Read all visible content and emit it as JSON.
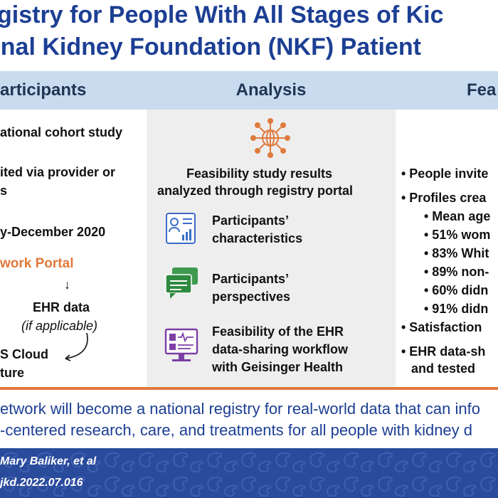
{
  "title": {
    "line1": "gistry for People With All Stages of Kic",
    "line2": "onal Kidney Foundation (NKF) Patient"
  },
  "columns": {
    "participants": {
      "header": "articipants"
    },
    "analysis": {
      "header": "Analysis"
    },
    "feasibility": {
      "header": "Fea"
    }
  },
  "participants": {
    "line1": "ational cohort study",
    "line2": "ited via provider or",
    "line3": "s",
    "line4": "y-December 2020",
    "portal": "work Portal",
    "arrow": "↓",
    "ehr": "EHR data",
    "ehr_note": "(if applicable)",
    "cloud1": "S Cloud",
    "cloud2": "ture"
  },
  "analysis": {
    "intro1": "Feasibility study results",
    "intro2": "analyzed through registry portal",
    "item1_line1": "Participants’",
    "item1_line2": "characteristics",
    "item2_line1": "Participants’",
    "item2_line2": "perspectives",
    "item3_line1": "Feasibility of the EHR",
    "item3_line2": "data-sharing workflow",
    "item3_line3": "with Geisinger Health"
  },
  "feasibility": {
    "b1": "• People invite",
    "b2": "• Profiles crea",
    "s1": "• Mean age",
    "s2": "• 51% wom",
    "s3": "• 83% Whit",
    "s4": "• 89% non-",
    "s5": "• 60% didn",
    "s6": "• 91% didn",
    "b3": "• Satisfaction",
    "b4a": "• EHR data-sh",
    "b4b": "and tested"
  },
  "conclusion": {
    "line1": "etwork will become a national registry for real-world data that can info",
    "line2": "-centered research, care, and treatments for all people with kidney d"
  },
  "footer": {
    "authors": "Mary Baliker, et al",
    "doi": "jkd.2022.07.016"
  },
  "colors": {
    "title_blue": "#1c3f94",
    "header_bg": "#c9dcef",
    "accent_orange": "#e07a3c",
    "footer_blue": "#2a4a9c"
  },
  "icons": [
    "network-globe-icon",
    "profile-chart-icon",
    "chat-bubbles-icon",
    "monitor-ehr-icon"
  ]
}
